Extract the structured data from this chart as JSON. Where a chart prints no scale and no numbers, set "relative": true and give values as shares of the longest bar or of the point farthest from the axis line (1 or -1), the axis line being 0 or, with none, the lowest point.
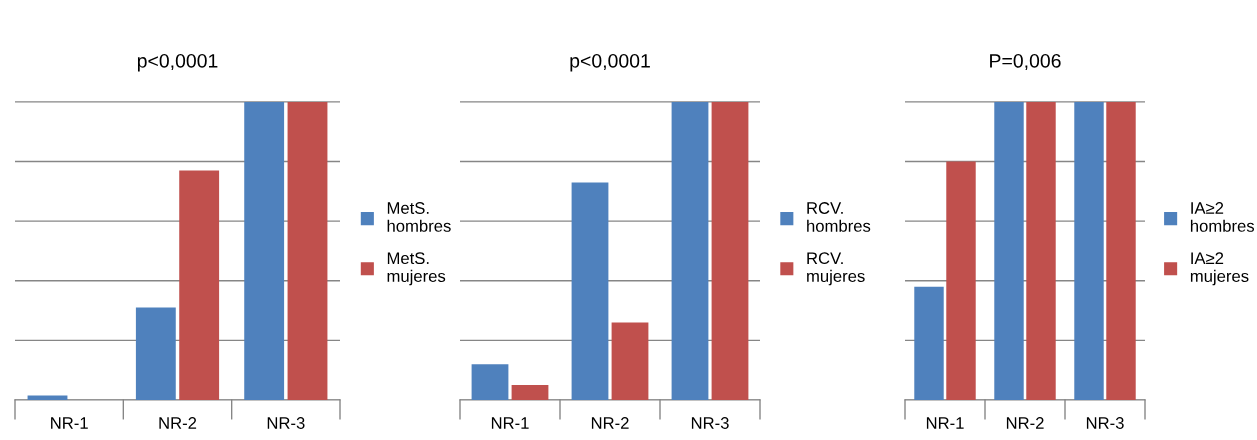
{
  "chart_data": [
    {
      "type": "bar",
      "title": "p<0,0001",
      "categories": [
        "NR-1",
        "NR-2",
        "NR-3"
      ],
      "relative": true,
      "grid": "y",
      "legend": "right",
      "series": [
        {
          "name": "MetS.\nhombres",
          "color": "#4f81bd",
          "values": [
            0.015,
            0.31,
            1
          ]
        },
        {
          "name": "MetS.\nmujeres",
          "color": "#c0504d",
          "values": [
            0,
            0.77,
            1
          ]
        }
      ]
    },
    {
      "type": "bar",
      "title": "p<0,0001",
      "categories": [
        "NR-1",
        "NR-2",
        "NR-3"
      ],
      "relative": true,
      "grid": "y",
      "legend": "right",
      "series": [
        {
          "name": "RCV.\nhombres",
          "color": "#4f81bd",
          "values": [
            0.12,
            0.73,
            1
          ]
        },
        {
          "name": "RCV.\nmujeres",
          "color": "#c0504d",
          "values": [
            0.05,
            0.26,
            1
          ]
        }
      ]
    },
    {
      "type": "bar",
      "title": "P=0,006",
      "categories": [
        "NR-1",
        "NR-2",
        "NR-3"
      ],
      "relative": true,
      "grid": "y",
      "legend": "right",
      "series": [
        {
          "name": "IA≥2\nhombres",
          "color": "#4f81bd",
          "values": [
            0.38,
            1,
            1
          ]
        },
        {
          "name": "IA≥2\nmujeres",
          "color": "#c0504d",
          "values": [
            0.8,
            1,
            1
          ]
        }
      ]
    }
  ]
}
